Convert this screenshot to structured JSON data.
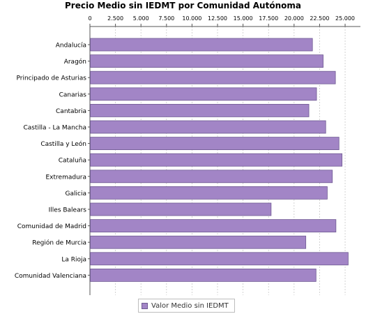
{
  "chart_data": {
    "type": "bar",
    "orientation": "horizontal",
    "title": "Precio Medio sin IEDMT por Comunidad Autónoma",
    "categories": [
      "Andalucía",
      "Aragón",
      "Principado de Asturias",
      "Canarias",
      "Cantabria",
      "Castilla - La Mancha",
      "Castilla y León",
      "Cataluña",
      "Extremadura",
      "Galicia",
      "Illes Balears",
      "Comunidad de Madrid",
      "Región de Murcia",
      "La Rioja",
      "Comunidad Valenciana"
    ],
    "series": [
      {
        "name": "Valor Medio sin IEDMT",
        "color": "#a285c6",
        "values": [
          21800,
          22850,
          24050,
          22200,
          21450,
          23100,
          24400,
          24700,
          23750,
          23250,
          17750,
          24100,
          21150,
          25300,
          22150
        ]
      }
    ],
    "xlim": [
      0,
      26500
    ],
    "ticks": [
      0,
      2500,
      5000,
      7500,
      10000,
      12500,
      15000,
      17500,
      20000,
      22500,
      25000
    ],
    "tick_labels": [
      "0",
      "2.500",
      "5.000",
      "7.500",
      "10.000",
      "12.500",
      "15.000",
      "17.500",
      "20.000",
      "22.500",
      "25.000"
    ],
    "grid": true,
    "legend_position": "bottom"
  }
}
